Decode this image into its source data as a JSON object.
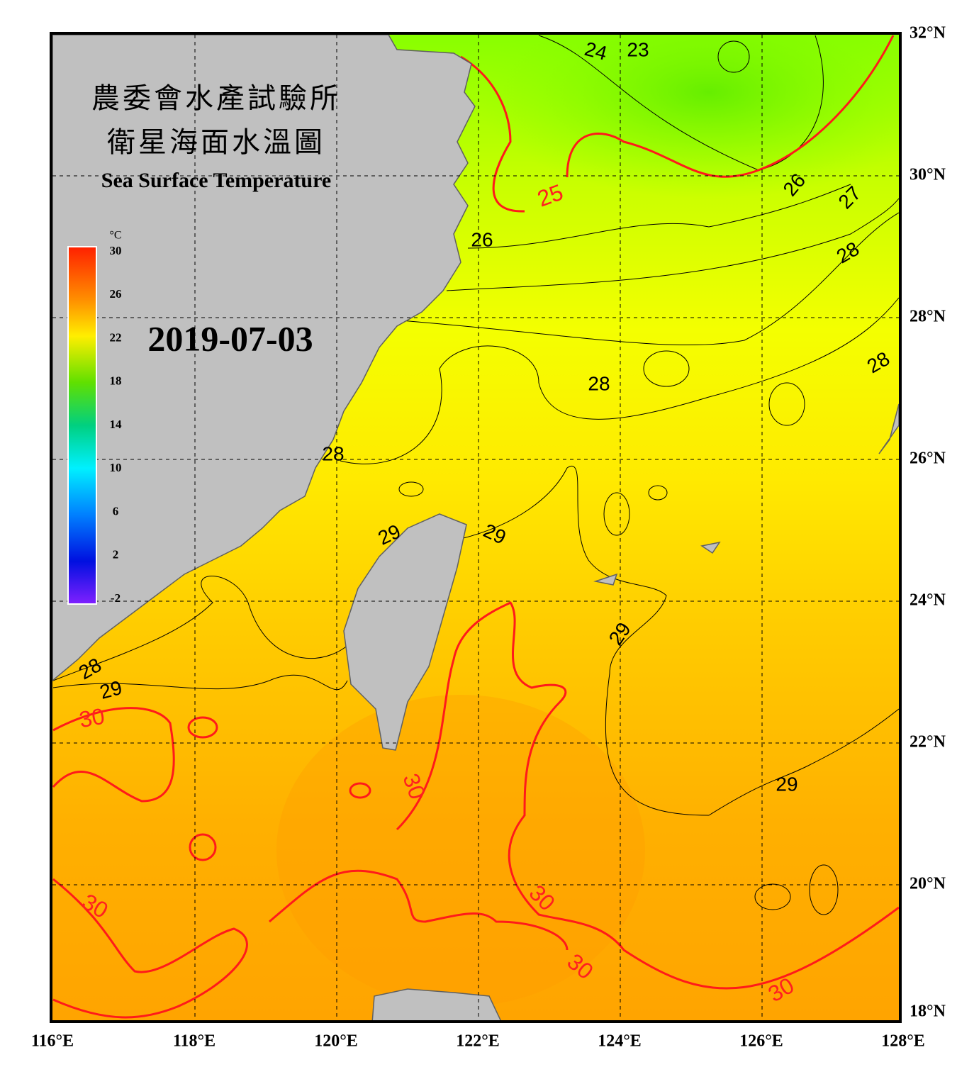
{
  "header": {
    "title_zh_line1": "農委會水產試驗所",
    "title_zh_line2": "衛星海面水溫圖",
    "title_en": "Sea Surface Temperature"
  },
  "date": "2019-07-03",
  "colorbar": {
    "unit": "°C",
    "ticks": [
      30,
      26,
      22,
      18,
      14,
      10,
      6,
      2,
      -2
    ]
  },
  "axes": {
    "longitude_labels": [
      "116°E",
      "118°E",
      "120°E",
      "122°E",
      "124°E",
      "126°E",
      "128°E"
    ],
    "latitude_labels": [
      "32°N",
      "30°N",
      "28°N",
      "26°N",
      "24°N",
      "22°N",
      "20°N",
      "18°N"
    ]
  },
  "contour_labels": [
    "24",
    "23",
    "25",
    "26",
    "26",
    "27",
    "28",
    "28",
    "28",
    "28",
    "29",
    "29",
    "29",
    "29",
    "28",
    "30",
    "29",
    "30",
    "30",
    "30",
    "30",
    "30"
  ]
}
